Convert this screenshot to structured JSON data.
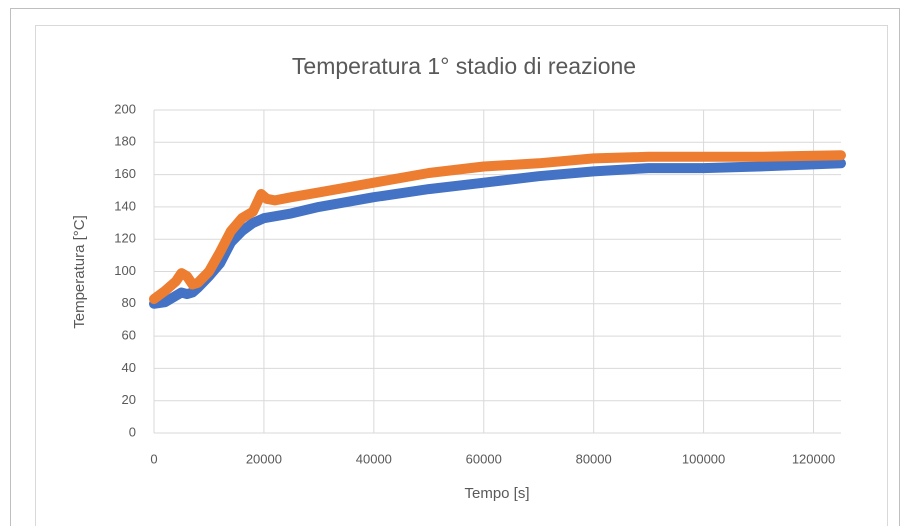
{
  "chart_data": {
    "type": "scatter",
    "title": "Temperatura 1° stadio di reazione",
    "x_label": "Tempo [s]",
    "y_label": "Temperatura [°C]",
    "xlim": [
      0,
      125000
    ],
    "xticks": [
      0,
      20000,
      40000,
      60000,
      80000,
      100000,
      120000
    ],
    "ylim": [
      0,
      200
    ],
    "yticks": [
      0,
      20,
      40,
      60,
      80,
      100,
      120,
      140,
      160,
      180,
      200
    ],
    "grid": true,
    "series": [
      {
        "color": "#4472c4",
        "x": [
          0,
          2000,
          4000,
          5000,
          6000,
          7000,
          8000,
          10000,
          12000,
          14000,
          16000,
          18000,
          20000,
          25000,
          30000,
          40000,
          50000,
          60000,
          70000,
          80000,
          90000,
          100000,
          110000,
          125000
        ],
        "values": [
          80,
          81,
          85,
          87,
          86,
          87,
          90,
          97,
          105,
          118,
          125,
          130,
          133,
          136,
          140,
          146,
          151,
          155,
          159,
          162,
          164,
          164,
          165,
          167
        ]
      },
      {
        "color": "#ed7d31",
        "x": [
          0,
          2000,
          4000,
          5000,
          6000,
          7000,
          8000,
          10000,
          12000,
          14000,
          16000,
          18000,
          19500,
          20500,
          22000,
          25000,
          30000,
          40000,
          50000,
          60000,
          70000,
          80000,
          90000,
          100000,
          110000,
          125000
        ],
        "values": [
          83,
          88,
          94,
          99,
          97,
          92,
          93,
          100,
          112,
          125,
          133,
          137,
          148,
          145,
          144,
          146,
          149,
          155,
          161,
          165,
          167,
          170,
          171,
          171,
          171,
          172
        ]
      }
    ]
  }
}
